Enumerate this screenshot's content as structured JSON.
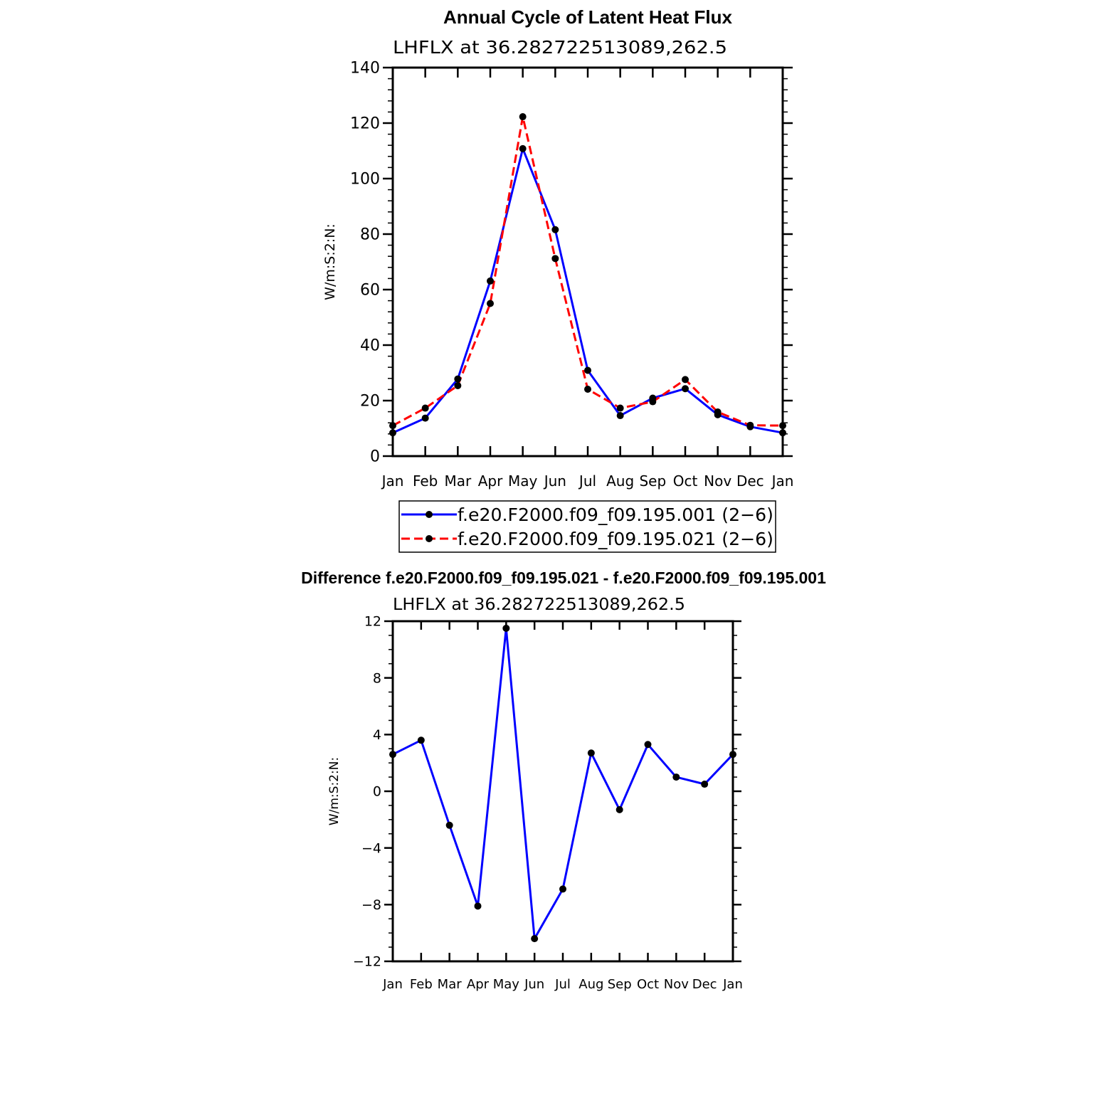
{
  "colors": {
    "series_1": "#0000ff",
    "series_2": "#ff0000",
    "marker": "#000000",
    "axis": "#000000",
    "background": "#ffffff"
  },
  "chart_data": [
    {
      "type": "line",
      "title": "Annual Cycle of Latent Heat Flux",
      "subtitle": "LHFLX  at  36.282722513089,262.5",
      "xlabel": "",
      "ylabel": "W/m:S:2:N:",
      "categories": [
        "Jan",
        "Feb",
        "Mar",
        "Apr",
        "May",
        "Jun",
        "Jul",
        "Aug",
        "Sep",
        "Oct",
        "Nov",
        "Dec",
        "Jan"
      ],
      "ylim": [
        0,
        140
      ],
      "yticks": [
        0,
        20,
        40,
        60,
        80,
        100,
        120,
        140
      ],
      "grid": false,
      "legend_position": "bottom",
      "series": [
        {
          "name": "f.e20.F2000.f09_f09.195.001 (2−6)",
          "style": "solid",
          "color": "#0000ff",
          "values": [
            8.4,
            13.7,
            27.8,
            63.1,
            110.8,
            81.6,
            30.9,
            14.6,
            20.9,
            24.3,
            14.9,
            10.6,
            8.4
          ]
        },
        {
          "name": "f.e20.F2000.f09_f09.195.021 (2−6)",
          "style": "dashed",
          "color": "#ff0000",
          "values": [
            11.0,
            17.3,
            25.4,
            55.0,
            122.3,
            71.2,
            24.1,
            17.3,
            19.6,
            27.6,
            15.9,
            11.1,
            11.0
          ]
        }
      ]
    },
    {
      "type": "line",
      "title": "Difference f.e20.F2000.f09_f09.195.021 - f.e20.F2000.f09_f09.195.001",
      "subtitle": "LHFLX  at  36.282722513089,262.5",
      "xlabel": "",
      "ylabel": "W/m:S:2:N:",
      "categories": [
        "Jan",
        "Feb",
        "Mar",
        "Apr",
        "May",
        "Jun",
        "Jul",
        "Aug",
        "Sep",
        "Oct",
        "Nov",
        "Dec",
        "Jan"
      ],
      "ylim": [
        -12,
        12
      ],
      "yticks": [
        -12,
        -8,
        -4,
        0,
        4,
        8,
        12
      ],
      "ytick_labels": [
        "−12",
        "−8",
        "−4",
        "0",
        "4",
        "8",
        "12"
      ],
      "grid": false,
      "series": [
        {
          "style": "solid",
          "color": "#0000ff",
          "values": [
            2.6,
            3.6,
            -2.4,
            -8.1,
            11.5,
            -10.4,
            -6.9,
            2.7,
            -1.3,
            3.3,
            1.0,
            0.5,
            2.6
          ]
        }
      ]
    }
  ]
}
